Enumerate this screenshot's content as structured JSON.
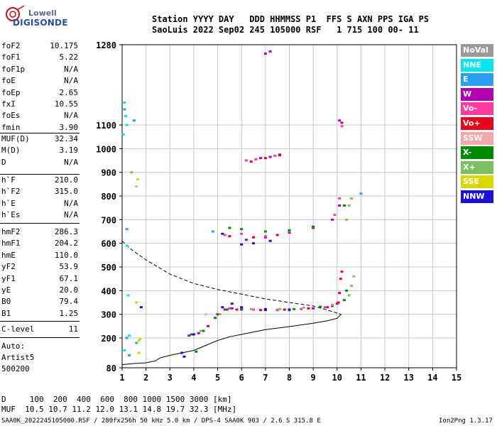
{
  "logo": {
    "line1": "Lowell",
    "line2": "DIGISONDE"
  },
  "header": {
    "line1": "Station YYYY DAY   DDD HHMMSS P1  FFS S AXN PPS IGA PS",
    "line2": "SaoLuis 2022 Sep02 245 105000 RSF   1 715 100 00- 11"
  },
  "params_group1": [
    {
      "k": "foF2",
      "v": "10.175"
    },
    {
      "k": "foF1",
      "v": "5.22"
    },
    {
      "k": "foF1p",
      "v": "N/A"
    },
    {
      "k": "foE",
      "v": "N/A"
    },
    {
      "k": "foEp",
      "v": "2.65"
    },
    {
      "k": "fxI",
      "v": "10.55"
    },
    {
      "k": "foEs",
      "v": "N/A"
    },
    {
      "k": "fmin",
      "v": "3.90"
    }
  ],
  "params_group2": [
    {
      "k": "MUF(D)",
      "v": "32.34"
    },
    {
      "k": "M(D)",
      "v": "3.19"
    },
    {
      "k": "D",
      "v": "N/A"
    }
  ],
  "params_group3": [
    {
      "k": "h`F",
      "v": "210.0"
    },
    {
      "k": "h`F2",
      "v": "315.0"
    },
    {
      "k": "h`E",
      "v": "N/A"
    },
    {
      "k": "h`Es",
      "v": "N/A"
    }
  ],
  "params_group4": [
    {
      "k": "hmF2",
      "v": "286.3"
    },
    {
      "k": "hmF1",
      "v": "204.2"
    },
    {
      "k": "hmE",
      "v": "110.0"
    },
    {
      "k": "yF2",
      "v": "53.9"
    },
    {
      "k": "yF1",
      "v": "67.1"
    },
    {
      "k": "yE",
      "v": "20.0"
    },
    {
      "k": "B0",
      "v": "79.4"
    },
    {
      "k": "B1",
      "v": "1.25"
    }
  ],
  "params_group5": [
    {
      "k": "C-level",
      "v": "11"
    }
  ],
  "auto_lines": [
    "Auto:",
    "Artist5",
    "500200"
  ],
  "legend": [
    {
      "label": "NoVal",
      "color": "#9a9a9a"
    },
    {
      "label": "NNE",
      "color": "#00e5f0"
    },
    {
      "label": "E",
      "color": "#2aa0f0"
    },
    {
      "label": "W",
      "color": "#b000b0"
    },
    {
      "label": "Vo-",
      "color": "#ff3aa0"
    },
    {
      "label": "Vo+",
      "color": "#e8001c"
    },
    {
      "label": "SSW",
      "color": "#f0a8a8"
    },
    {
      "label": "X-",
      "color": "#008a00"
    },
    {
      "label": "X+",
      "color": "#7ac060"
    },
    {
      "label": "SSE",
      "color": "#d8d800"
    },
    {
      "label": "NNW",
      "color": "#1a10d8"
    }
  ],
  "footer": {
    "line1": "D     100  200  400  600  800 1000 1500 3000 [km]",
    "line2": "MUF  10.5 10.7 11.2 12.0 13.1 14.8 19.7 32.3 [MHz]",
    "file": "SAA0K_2022245105000.RSF / 280fx256h 50 kHz 5.0 km / DPS-4 SAA0K 903 / 2.6 S 315.8 E",
    "version": "Ion2Png 1.3.17"
  },
  "chart_data": {
    "type": "scatter",
    "x_ticks": [
      1,
      2,
      3,
      4,
      5,
      6,
      7,
      8,
      9,
      10,
      11,
      12,
      13,
      14,
      15
    ],
    "y_ticks": [
      80,
      200,
      300,
      400,
      500,
      600,
      700,
      800,
      900,
      1000,
      1100,
      1280
    ],
    "xlim": [
      1,
      15
    ],
    "ylim": [
      80,
      1280
    ],
    "grid": true,
    "legend_position": "right",
    "series": [
      {
        "name": "W",
        "color": "#b000b0",
        "points": [
          [
            3.8,
            210
          ],
          [
            4.2,
            220
          ],
          [
            4.6,
            250
          ],
          [
            5.0,
            300
          ],
          [
            5.3,
            320
          ],
          [
            5.6,
            325
          ],
          [
            6.0,
            320
          ],
          [
            7.0,
            318
          ],
          [
            8.0,
            318
          ],
          [
            9.0,
            325
          ],
          [
            9.6,
            330
          ],
          [
            10.0,
            345
          ],
          [
            6.2,
            615
          ],
          [
            7.0,
            625
          ],
          [
            8.0,
            645
          ],
          [
            9.0,
            665
          ],
          [
            9.8,
            700
          ],
          [
            10.1,
            760
          ],
          [
            6.8,
            960
          ],
          [
            7.2,
            965
          ],
          [
            7.6,
            975
          ],
          [
            10.1,
            1110
          ],
          [
            10.2,
            1105
          ],
          [
            7.0,
            1260
          ],
          [
            7.2,
            1265
          ]
        ]
      },
      {
        "name": "Vo-",
        "color": "#ff3aa0",
        "points": [
          [
            4.0,
            215
          ],
          [
            5.5,
            325
          ],
          [
            6.5,
            320
          ],
          [
            7.5,
            318
          ],
          [
            8.5,
            322
          ],
          [
            9.5,
            330
          ],
          [
            5.3,
            635
          ],
          [
            6.0,
            640
          ],
          [
            7.0,
            630
          ],
          [
            8.0,
            650
          ],
          [
            9.0,
            670
          ],
          [
            9.9,
            720
          ],
          [
            10.1,
            790
          ],
          [
            6.2,
            950
          ],
          [
            6.6,
            955
          ],
          [
            7.4,
            970
          ],
          [
            10.2,
            1095
          ]
        ]
      },
      {
        "name": "Vo+",
        "color": "#e8001c",
        "points": [
          [
            5.8,
            320
          ],
          [
            6.8,
            318
          ],
          [
            7.8,
            320
          ],
          [
            8.8,
            325
          ],
          [
            9.8,
            335
          ],
          [
            10.05,
            350
          ],
          [
            10.1,
            390
          ],
          [
            10.15,
            450
          ],
          [
            10.2,
            480
          ],
          [
            5.5,
            630
          ],
          [
            6.5,
            625
          ],
          [
            7.5,
            635
          ],
          [
            6.4,
            945
          ],
          [
            7.0,
            960
          ],
          [
            7.6,
            972
          ]
        ]
      },
      {
        "name": "X-",
        "color": "#008a00",
        "points": [
          [
            3.9,
            215
          ],
          [
            4.4,
            230
          ],
          [
            4.9,
            285
          ],
          [
            5.4,
            320
          ],
          [
            6.0,
            325
          ],
          [
            7.0,
            322
          ],
          [
            8.2,
            322
          ],
          [
            9.3,
            332
          ],
          [
            10.3,
            360
          ],
          [
            10.4,
            400
          ],
          [
            4.1,
            145
          ],
          [
            5.5,
            665
          ],
          [
            6.0,
            660
          ],
          [
            7.0,
            650
          ],
          [
            8.0,
            655
          ],
          [
            9.0,
            670
          ],
          [
            10.3,
            760
          ]
        ]
      },
      {
        "name": "X+",
        "color": "#7ac060",
        "points": [
          [
            4.3,
            230
          ],
          [
            5.1,
            300
          ],
          [
            6.4,
            322
          ],
          [
            7.6,
            322
          ],
          [
            8.6,
            328
          ],
          [
            9.8,
            340
          ],
          [
            10.5,
            380
          ],
          [
            10.6,
            420
          ],
          [
            10.7,
            460
          ],
          [
            10.4,
            700
          ],
          [
            10.5,
            760
          ],
          [
            10.6,
            790
          ],
          [
            1.4,
            900
          ]
        ]
      },
      {
        "name": "NNW",
        "color": "#1a10d8",
        "points": [
          [
            3.6,
            125
          ],
          [
            4.0,
            215
          ],
          [
            5.2,
            330
          ],
          [
            5.6,
            345
          ],
          [
            6.0,
            330
          ],
          [
            7.0,
            320
          ],
          [
            8.0,
            320
          ],
          [
            6.0,
            595
          ],
          [
            6.5,
            600
          ],
          [
            7.2,
            610
          ],
          [
            5.2,
            640
          ],
          [
            1.8,
            330
          ],
          [
            3.5,
            140
          ]
        ]
      },
      {
        "name": "NNE",
        "color": "#00e5f0",
        "points": [
          [
            1.1,
            1150
          ],
          [
            1.15,
            1120
          ],
          [
            1.2,
            1100
          ],
          [
            1.05,
            1060
          ],
          [
            1.2,
            590
          ],
          [
            1.25,
            380
          ],
          [
            1.3,
            210
          ],
          [
            1.1,
            150
          ]
        ]
      },
      {
        "name": "E",
        "color": "#2aa0f0",
        "points": [
          [
            1.1,
            1135
          ],
          [
            1.5,
            1110
          ],
          [
            1.2,
            660
          ],
          [
            11.0,
            810
          ],
          [
            4.8,
            650
          ],
          [
            1.2,
            200
          ],
          [
            1.6,
            180
          ],
          [
            1.3,
            130
          ]
        ]
      },
      {
        "name": "SSE",
        "color": "#d8d800",
        "points": [
          [
            1.7,
            190
          ],
          [
            1.75,
            195
          ],
          [
            1.7,
            140
          ],
          [
            1.6,
            350
          ],
          [
            1.65,
            870
          ]
        ]
      },
      {
        "name": "SSW",
        "color": "#f0a8a8",
        "points": [
          [
            1.6,
            840
          ],
          [
            4.5,
            300
          ]
        ]
      }
    ],
    "ne_profile_solid": [
      [
        1.0,
        93
      ],
      [
        1.5,
        97
      ],
      [
        2.0,
        100
      ],
      [
        2.4,
        108
      ],
      [
        2.6,
        120
      ],
      [
        3.0,
        130
      ],
      [
        3.5,
        140
      ],
      [
        4.0,
        150
      ],
      [
        4.5,
        170
      ],
      [
        5.0,
        190
      ],
      [
        5.5,
        205
      ],
      [
        6.0,
        215
      ],
      [
        7.0,
        235
      ],
      [
        8.0,
        248
      ],
      [
        9.0,
        262
      ],
      [
        9.6,
        273
      ],
      [
        10.0,
        283
      ],
      [
        10.17,
        300
      ]
    ],
    "ne_profile_dashed": [
      [
        1.0,
        610
      ],
      [
        1.3,
        580
      ],
      [
        2.0,
        530
      ],
      [
        3.0,
        470
      ],
      [
        4.0,
        430
      ],
      [
        5.0,
        405
      ],
      [
        6.0,
        385
      ],
      [
        7.0,
        365
      ],
      [
        8.0,
        350
      ],
      [
        9.0,
        335
      ],
      [
        9.6,
        318
      ],
      [
        10.0,
        305
      ],
      [
        10.17,
        300
      ]
    ]
  }
}
